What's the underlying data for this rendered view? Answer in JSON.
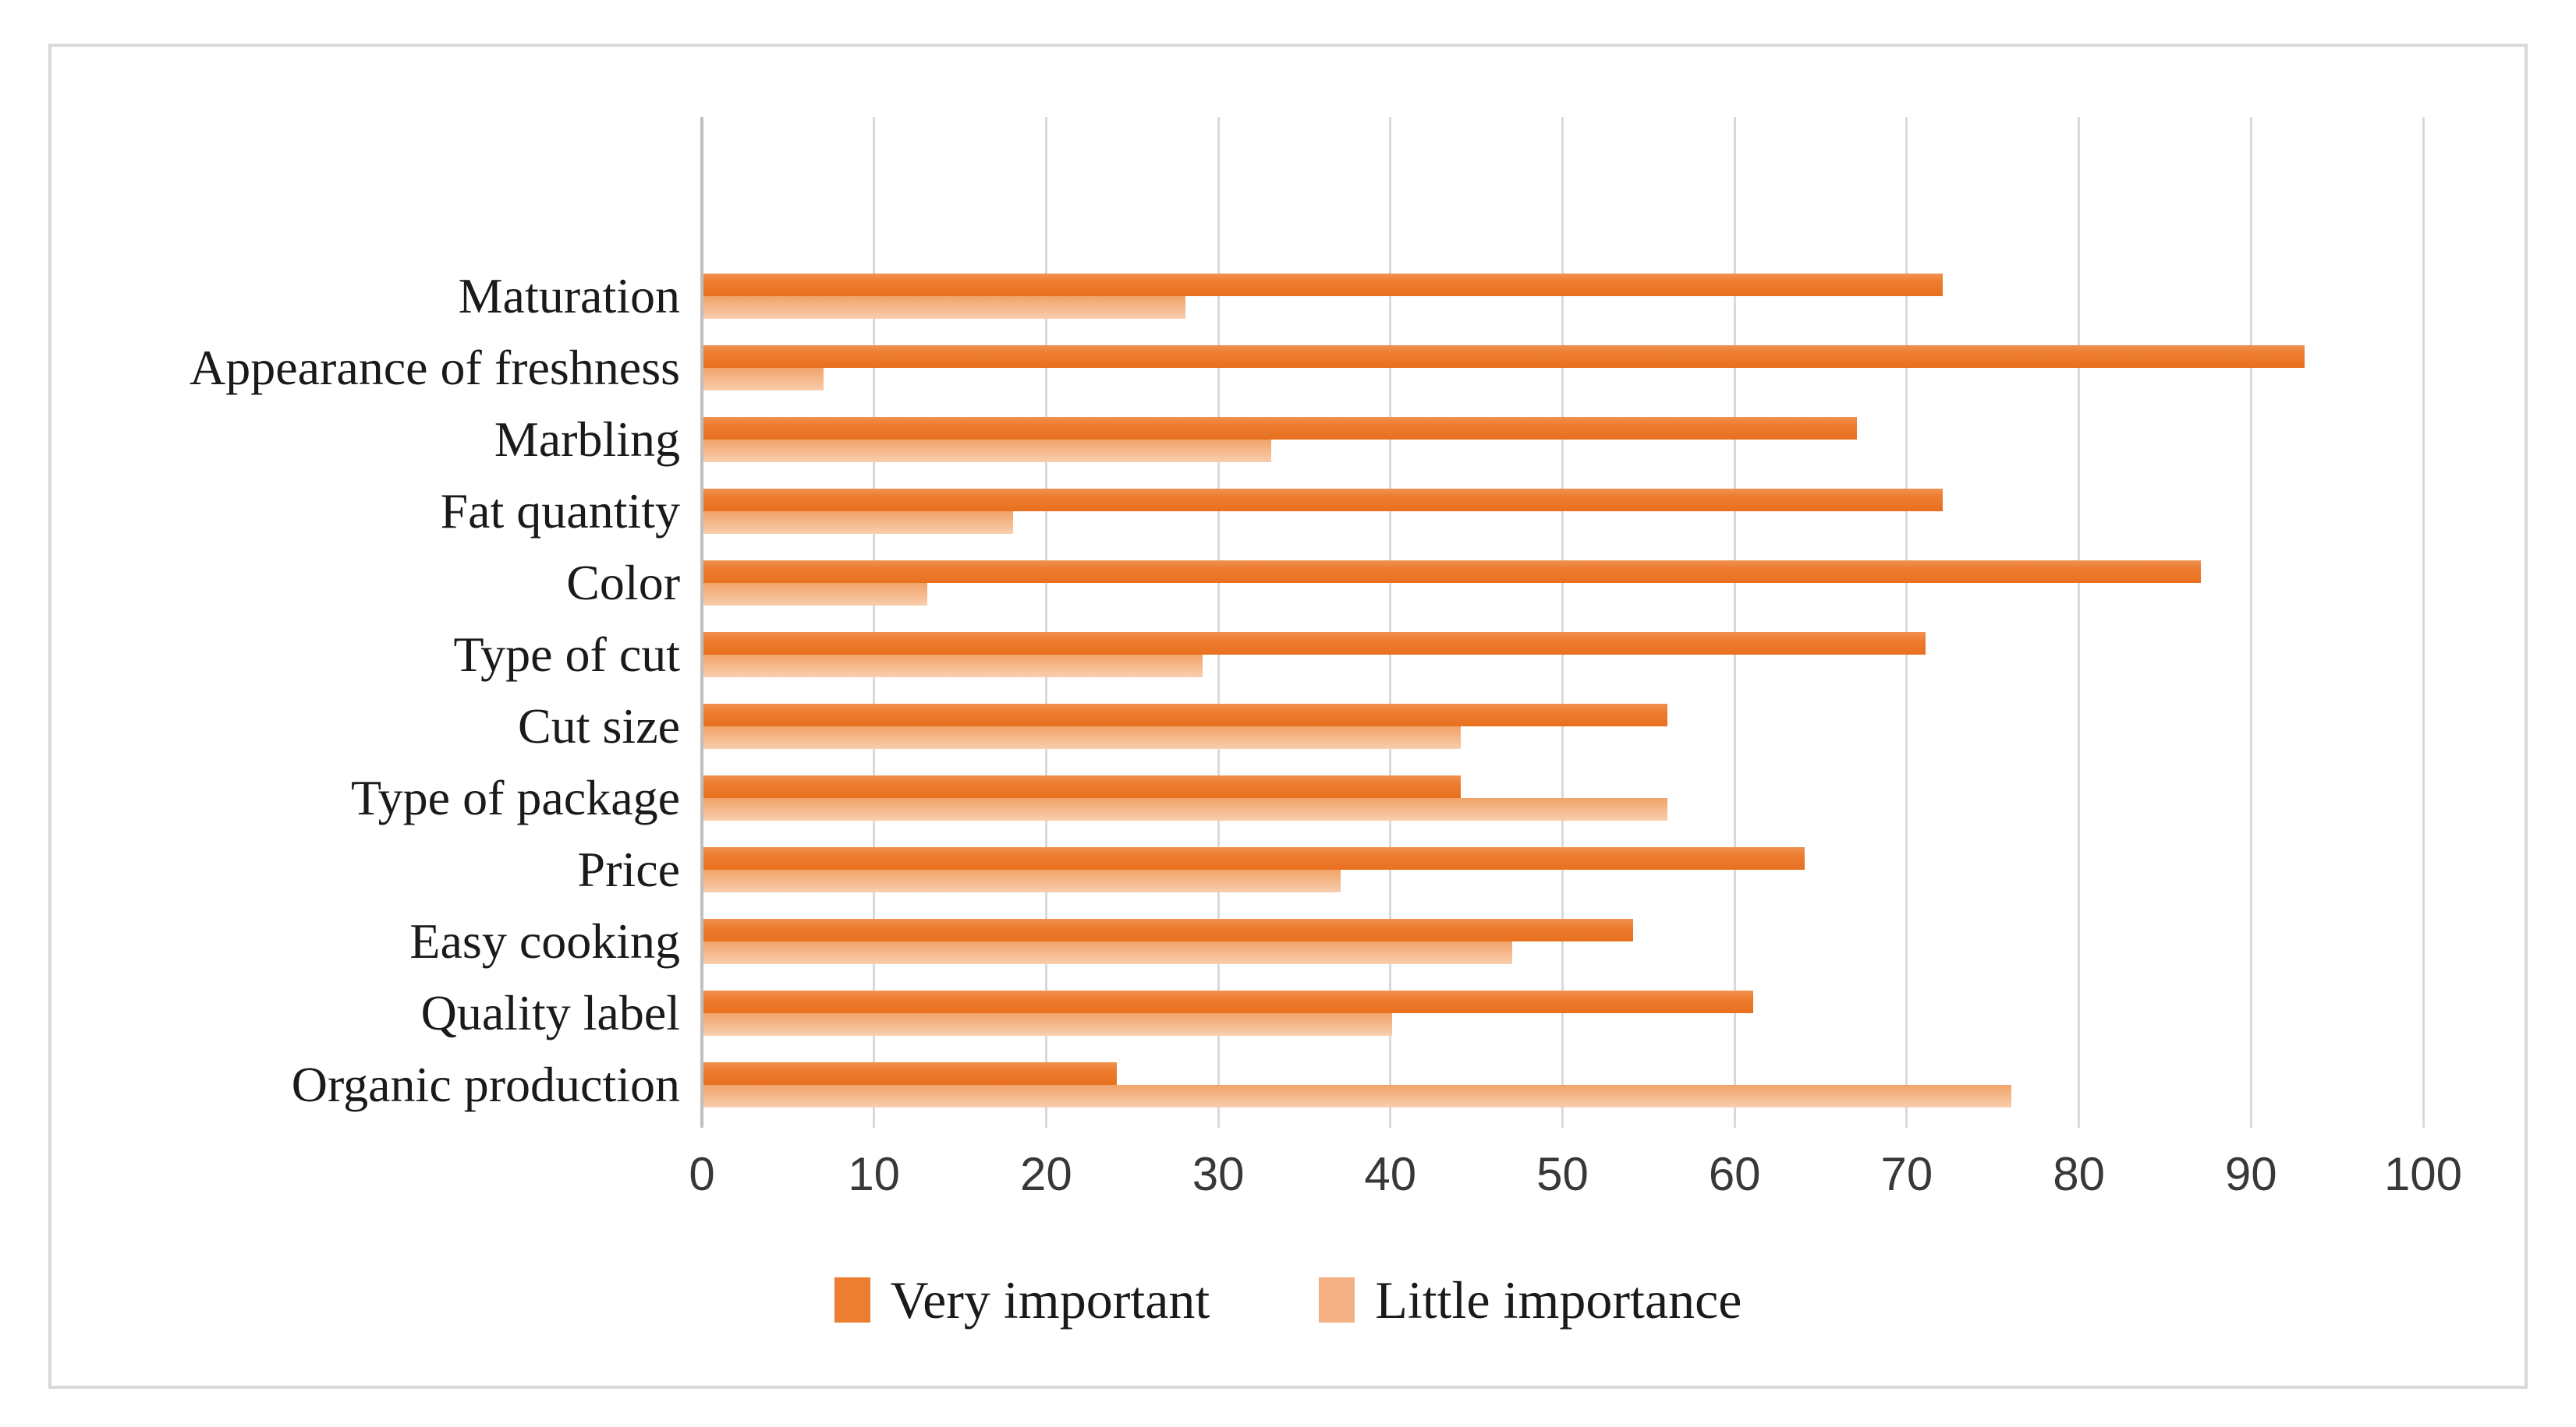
{
  "figure": {
    "background": "#ffffff",
    "frame_border_color": "#D9D9D9",
    "gridline_color": "#D9D9D9",
    "axis_line_color": "#BFBFBF",
    "text_color": "#1a1a1a"
  },
  "chart_data": {
    "type": "bar",
    "orientation": "horizontal",
    "title": "",
    "xlabel": "",
    "ylabel": "",
    "xlim": [
      0,
      100
    ],
    "xticks": [
      0,
      10,
      20,
      30,
      40,
      50,
      60,
      70,
      80,
      90,
      100
    ],
    "grid": "vertical",
    "legend_position": "bottom",
    "categories": [
      "Maturation",
      "Appearance of freshness",
      "Marbling",
      "Fat quantity",
      "Color",
      "Type of cut",
      "Cut size",
      "Type of package",
      "Price",
      "Easy cooking",
      "Quality label",
      "Organic production"
    ],
    "series": [
      {
        "name": "Very important",
        "color": "#ED7D31",
        "values": [
          72,
          93,
          67,
          72,
          87,
          71,
          56,
          44,
          64,
          54,
          61,
          24
        ]
      },
      {
        "name": "Little importance",
        "color": "#F4B183",
        "values": [
          28,
          7,
          33,
          18,
          13,
          29,
          44,
          56,
          37,
          47,
          40,
          76
        ]
      }
    ]
  }
}
